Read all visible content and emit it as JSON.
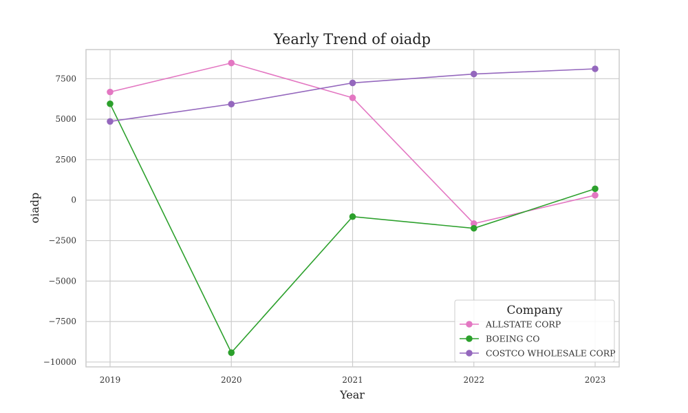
{
  "chart_data": {
    "type": "line",
    "title": "Yearly Trend of oiadp",
    "xlabel": "Year",
    "ylabel": "oiadp",
    "categories": [
      "2019",
      "2020",
      "2021",
      "2022",
      "2023"
    ],
    "y_ticks": [
      -10000,
      -7500,
      -5000,
      -2500,
      0,
      2500,
      5000,
      7500
    ],
    "y_tick_labels": [
      "−10000",
      "−7500",
      "−5000",
      "−2500",
      "0",
      "2500",
      "5000",
      "7500"
    ],
    "ylim": [
      -10300,
      9300
    ],
    "grid": true,
    "legend": {
      "title": "Company",
      "placement": "lower-right"
    },
    "series": [
      {
        "name": "ALLSTATE CORP",
        "color": "#e377c2",
        "values": [
          6680,
          8470,
          6320,
          -1450,
          300
        ]
      },
      {
        "name": "BOEING CO",
        "color": "#2ca02c",
        "values": [
          5950,
          -9420,
          -1020,
          -1740,
          700
        ]
      },
      {
        "name": "COSTCO WHOLESALE CORP",
        "color": "#9467bd",
        "values": [
          4860,
          5930,
          7240,
          7790,
          8110
        ]
      }
    ]
  }
}
